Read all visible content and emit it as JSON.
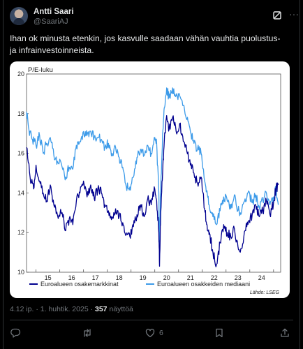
{
  "post": {
    "author_name": "Antti Saari",
    "author_handle": "@SaariAJ",
    "text": "Ihan ok minusta etenkin, jos kasvulle saadaan vähän vauhtia puolustus- ja infrainvestoinneista.",
    "timestamp": "4.12 ip. · 1. huhtik. 2025 · ",
    "views_count": "357",
    "views_label": " näyttöä"
  },
  "actions": {
    "reply_icon": "reply-icon",
    "repost_icon": "repost-icon",
    "like_icon": "heart-icon",
    "like_count": "6",
    "bookmark_icon": "bookmark-icon",
    "share_icon": "share-icon"
  },
  "colors": {
    "background": "#000000",
    "text": "#e7e9ea",
    "muted": "#71767b",
    "series_dark": "#00008f",
    "series_light": "#3d9be9"
  },
  "chart_data": {
    "type": "line",
    "ylabel": "P/E-luku",
    "ylim": [
      10,
      20
    ],
    "yticks": [
      10,
      12,
      14,
      16,
      18,
      20
    ],
    "xlim": [
      2014.6,
      2025.3
    ],
    "xticks": [
      {
        "label": "15",
        "x": 2015.5
      },
      {
        "label": "16",
        "x": 2016.5
      },
      {
        "label": "17",
        "x": 2017.5
      },
      {
        "label": "18",
        "x": 2018.5
      },
      {
        "label": "19",
        "x": 2019.5
      },
      {
        "label": "20",
        "x": 2020.5
      },
      {
        "label": "21",
        "x": 2021.5
      },
      {
        "label": "22",
        "x": 2022.5
      },
      {
        "label": "23",
        "x": 2023.5
      },
      {
        "label": "24",
        "x": 2024.5
      }
    ],
    "source": "Lähde: LSEG",
    "legend_position": "bottom",
    "series": [
      {
        "name": "Euroalueen osakemarkkinat",
        "color": "#00008f",
        "x": [
          2014.6,
          2014.75,
          2014.9,
          2015.0,
          2015.15,
          2015.3,
          2015.45,
          2015.6,
          2015.75,
          2015.9,
          2016.1,
          2016.25,
          2016.4,
          2016.55,
          2016.7,
          2016.85,
          2017.0,
          2017.15,
          2017.3,
          2017.45,
          2017.6,
          2017.75,
          2017.9,
          2018.05,
          2018.2,
          2018.35,
          2018.5,
          2018.65,
          2018.8,
          2018.95,
          2019.1,
          2019.25,
          2019.4,
          2019.55,
          2019.7,
          2019.85,
          2020.0,
          2020.08,
          2020.17,
          2020.2,
          2020.25,
          2020.33,
          2020.4,
          2020.5,
          2020.6,
          2020.75,
          2020.9,
          2021.05,
          2021.2,
          2021.35,
          2021.5,
          2021.65,
          2021.8,
          2021.95,
          2022.1,
          2022.2,
          2022.3,
          2022.45,
          2022.6,
          2022.75,
          2022.9,
          2023.05,
          2023.2,
          2023.35,
          2023.5,
          2023.65,
          2023.8,
          2023.95,
          2024.1,
          2024.25,
          2024.4,
          2024.55,
          2024.7,
          2024.85,
          2025.0,
          2025.1,
          2025.2
        ],
        "values": [
          16.3,
          14.8,
          14.2,
          15.4,
          14.6,
          14.0,
          13.6,
          14.4,
          13.4,
          12.9,
          13.0,
          12.1,
          12.7,
          12.4,
          13.6,
          14.0,
          14.6,
          13.8,
          14.4,
          13.7,
          14.2,
          14.0,
          13.4,
          13.1,
          12.8,
          13.2,
          12.8,
          12.5,
          11.9,
          11.8,
          12.3,
          12.9,
          13.4,
          12.8,
          13.7,
          13.4,
          14.2,
          13.6,
          12.0,
          10.3,
          13.0,
          15.0,
          16.6,
          17.9,
          17.2,
          17.8,
          17.1,
          17.5,
          16.6,
          16.1,
          15.4,
          15.0,
          14.5,
          14.8,
          13.2,
          12.4,
          12.0,
          11.0,
          10.4,
          11.5,
          12.4,
          12.0,
          11.8,
          12.2,
          11.3,
          11.2,
          12.1,
          12.6,
          12.9,
          13.4,
          12.8,
          13.1,
          13.6,
          12.9,
          13.5,
          14.2,
          14.4
        ]
      },
      {
        "name": "Euroalueen osakkeiden mediaani",
        "color": "#3d9be9",
        "x": [
          2014.6,
          2014.7,
          2014.85,
          2015.0,
          2015.15,
          2015.3,
          2015.45,
          2015.6,
          2015.75,
          2015.9,
          2016.1,
          2016.25,
          2016.4,
          2016.55,
          2016.7,
          2016.85,
          2017.0,
          2017.15,
          2017.3,
          2017.45,
          2017.6,
          2017.75,
          2017.9,
          2018.05,
          2018.2,
          2018.35,
          2018.5,
          2018.65,
          2018.8,
          2018.95,
          2019.1,
          2019.25,
          2019.4,
          2019.55,
          2019.7,
          2019.85,
          2020.0,
          2020.08,
          2020.17,
          2020.2,
          2020.25,
          2020.33,
          2020.4,
          2020.5,
          2020.6,
          2020.75,
          2020.9,
          2021.05,
          2021.2,
          2021.35,
          2021.5,
          2021.65,
          2021.8,
          2021.95,
          2022.1,
          2022.2,
          2022.3,
          2022.45,
          2022.6,
          2022.75,
          2022.9,
          2023.05,
          2023.2,
          2023.35,
          2023.5,
          2023.65,
          2023.8,
          2023.95,
          2024.1,
          2024.25,
          2024.4,
          2024.55,
          2024.7,
          2024.85,
          2025.0,
          2025.1,
          2025.2
        ],
        "values": [
          18.1,
          17.2,
          16.7,
          16.4,
          16.9,
          16.0,
          16.5,
          16.8,
          15.9,
          15.6,
          15.3,
          14.8,
          15.3,
          15.2,
          16.4,
          16.6,
          17.1,
          16.9,
          17.1,
          16.8,
          16.8,
          16.7,
          16.3,
          16.5,
          16.0,
          16.3,
          15.8,
          15.3,
          14.3,
          14.3,
          14.8,
          15.8,
          16.2,
          15.9,
          16.4,
          16.0,
          16.8,
          16.5,
          14.0,
          11.2,
          14.2,
          17.0,
          18.3,
          19.3,
          18.8,
          19.3,
          18.9,
          18.9,
          18.4,
          17.7,
          17.1,
          16.5,
          16.2,
          16.0,
          14.6,
          14.1,
          13.3,
          12.8,
          12.4,
          13.1,
          13.8,
          13.6,
          13.2,
          13.9,
          13.1,
          13.0,
          13.7,
          14.1,
          13.5,
          13.9,
          13.3,
          13.6,
          14.0,
          13.4,
          13.8,
          14.2,
          13.4
        ]
      }
    ]
  }
}
